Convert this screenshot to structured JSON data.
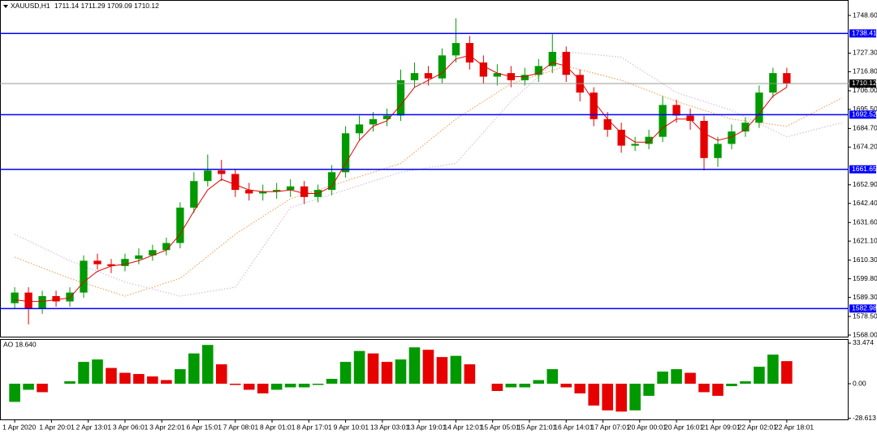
{
  "chart_data": [
    {
      "type": "candlestick",
      "title": "XAUUSD,H1",
      "header_values": [
        1711.14,
        1711.29,
        1709.09,
        1710.12
      ],
      "x": [
        0,
        6,
        12,
        18,
        24,
        30,
        36,
        42,
        48,
        54,
        60,
        66,
        72,
        78,
        84,
        90,
        96,
        102,
        108,
        114,
        120,
        126,
        132,
        138,
        144,
        150,
        156,
        162,
        168,
        174,
        180,
        186,
        192,
        198,
        204,
        210,
        216,
        222,
        228,
        234,
        240,
        246,
        252,
        258,
        264,
        270,
        276,
        282,
        288,
        294,
        300,
        306,
        312,
        318,
        324,
        330,
        336
      ],
      "open": [
        1586,
        1592,
        1583,
        1590,
        1587,
        1592,
        1610,
        1608,
        1607,
        1611,
        1613,
        1616,
        1620,
        1640,
        1655,
        1661,
        1659,
        1650,
        1648,
        1649,
        1650,
        1652,
        1646,
        1650,
        1660,
        1682,
        1687,
        1690,
        1692,
        1712,
        1716,
        1713,
        1726,
        1733,
        1722,
        1714,
        1716,
        1712,
        1715,
        1720,
        1728,
        1715,
        1705,
        1690,
        1684,
        1675,
        1676,
        1680,
        1698,
        1692,
        1689,
        1668,
        1676,
        1683,
        1688,
        1705,
        1716
      ],
      "high": [
        1595,
        1595,
        1593,
        1593,
        1595,
        1613,
        1614,
        1611,
        1614,
        1617,
        1619,
        1623,
        1643,
        1660,
        1670,
        1667,
        1662,
        1654,
        1653,
        1654,
        1656,
        1655,
        1653,
        1664,
        1686,
        1692,
        1694,
        1696,
        1718,
        1722,
        1720,
        1730,
        1747,
        1737,
        1726,
        1721,
        1720,
        1719,
        1724,
        1738,
        1731,
        1718,
        1708,
        1694,
        1688,
        1680,
        1684,
        1703,
        1701,
        1696,
        1692,
        1680,
        1687,
        1691,
        1709,
        1719,
        1719
      ],
      "low": [
        1583,
        1574,
        1580,
        1584,
        1584,
        1589,
        1605,
        1603,
        1604,
        1608,
        1610,
        1613,
        1617,
        1637,
        1652,
        1655,
        1646,
        1644,
        1644,
        1645,
        1646,
        1642,
        1643,
        1647,
        1657,
        1678,
        1683,
        1686,
        1689,
        1708,
        1709,
        1710,
        1722,
        1718,
        1710,
        1709,
        1708,
        1709,
        1711,
        1716,
        1711,
        1700,
        1686,
        1680,
        1671,
        1672,
        1673,
        1677,
        1688,
        1684,
        1661,
        1663,
        1673,
        1680,
        1685,
        1702,
        1708
      ],
      "close": [
        1592,
        1583,
        1590,
        1587,
        1592,
        1610,
        1608,
        1607,
        1611,
        1613,
        1616,
        1620,
        1640,
        1655,
        1661,
        1659,
        1650,
        1648,
        1649,
        1650,
        1652,
        1646,
        1650,
        1660,
        1682,
        1687,
        1690,
        1692,
        1712,
        1716,
        1713,
        1726,
        1733,
        1722,
        1714,
        1716,
        1712,
        1715,
        1720,
        1728,
        1715,
        1705,
        1690,
        1684,
        1675,
        1676,
        1680,
        1698,
        1692,
        1689,
        1668,
        1676,
        1683,
        1688,
        1705,
        1716,
        1710.12
      ],
      "up_color": "#009900",
      "down_color": "#e60000",
      "ma": {
        "color": "#e60000",
        "values": [
          1588,
          1587,
          1587,
          1588,
          1589,
          1598,
          1604,
          1607,
          1608,
          1610,
          1613,
          1616,
          1625,
          1638,
          1650,
          1656,
          1653,
          1650,
          1649,
          1649,
          1650,
          1648,
          1648,
          1652,
          1665,
          1678,
          1686,
          1689,
          1698,
          1708,
          1712,
          1716,
          1724,
          1726,
          1720,
          1716,
          1714,
          1714,
          1716,
          1722,
          1720,
          1712,
          1700,
          1690,
          1682,
          1677,
          1677,
          1685,
          1690,
          1690,
          1682,
          1678,
          1680,
          1684,
          1693,
          1703,
          1708
        ]
      },
      "cloud": {
        "x": [
          0,
          24,
          48,
          72,
          96,
          120,
          144,
          168,
          192,
          216,
          240,
          264,
          288,
          312,
          336,
          360
        ],
        "span_a": [
          1612,
          1600,
          1590,
          1600,
          1625,
          1645,
          1655,
          1665,
          1690,
          1710,
          1720,
          1712,
          1700,
          1690,
          1686,
          1702
        ],
        "span_b": [
          1625,
          1610,
          1598,
          1590,
          1595,
          1640,
          1650,
          1660,
          1665,
          1700,
          1728,
          1725,
          1705,
          1695,
          1680,
          1688
        ],
        "color_a": "#f4a460",
        "color_b": "#d8bfd8"
      },
      "levels": {
        "values": [
          1738.41,
          1692.52,
          1661.65,
          1582.98
        ],
        "color": "#0000ff"
      },
      "current_price": 1710.12,
      "xlim": [
        -6.4,
        362.9
      ],
      "ylim": [
        1566.63,
        1757.31
      ],
      "yticks": [
        {
          "value": 1748.6,
          "label": "1748.60"
        },
        {
          "value": 1727.3,
          "label": "1727.30"
        },
        {
          "value": 1716.8,
          "label": "1716.80"
        },
        {
          "value": 1706.0,
          "label": "1706.00"
        },
        {
          "value": 1695.5,
          "label": "1695.50"
        },
        {
          "value": 1684.7,
          "label": "1684.70"
        },
        {
          "value": 1674.2,
          "label": "1674.20"
        },
        {
          "value": 1652.9,
          "label": "1652.90"
        },
        {
          "value": 1642.4,
          "label": "1642.40"
        },
        {
          "value": 1631.6,
          "label": "1631.60"
        },
        {
          "value": 1621.1,
          "label": "1621.10"
        },
        {
          "value": 1610.3,
          "label": "1610.30"
        },
        {
          "value": 1599.8,
          "label": "1599.80"
        },
        {
          "value": 1589.3,
          "label": "1589.30"
        },
        {
          "value": 1578.5,
          "label": "1578.50"
        },
        {
          "value": 1568.0,
          "label": "1568.00"
        }
      ]
    },
    {
      "type": "bar",
      "title": "AO 18.640",
      "x": [
        0,
        6,
        12,
        18,
        24,
        30,
        36,
        42,
        48,
        54,
        60,
        66,
        72,
        78,
        84,
        90,
        96,
        102,
        108,
        114,
        120,
        126,
        132,
        138,
        144,
        150,
        156,
        162,
        168,
        174,
        180,
        186,
        192,
        198,
        204,
        210,
        216,
        222,
        228,
        234,
        240,
        246,
        252,
        258,
        264,
        270,
        276,
        282,
        288,
        294,
        300,
        306,
        312,
        318,
        324,
        330,
        336
      ],
      "values": [
        -15,
        -5,
        -7,
        0,
        2,
        18,
        20,
        13,
        9,
        8,
        6,
        3,
        12,
        25,
        32,
        16,
        -1,
        -5,
        -8,
        -5,
        -3,
        -3,
        -1,
        4,
        18,
        27,
        25,
        18,
        20,
        30,
        28,
        22,
        23,
        16,
        0,
        -6,
        -3,
        -3,
        3,
        12,
        -3,
        -8,
        -18,
        -22,
        -23,
        -22,
        -10,
        10,
        12,
        9,
        -7,
        -10,
        -2,
        2,
        14,
        24,
        18.64
      ],
      "up_color": "#009900",
      "down_color": "#e60000",
      "xlim": [
        -6.4,
        362.9
      ],
      "ylim": [
        -30.12,
        36.82
      ],
      "yticks": [
        33.474,
        {
          "value": 0,
          "label": "0.00"
        },
        -28.613
      ],
      "xticks": [
        {
          "value": 0,
          "label": "1 Apr 2020"
        },
        {
          "value": 16,
          "label": "1 Apr 20:01"
        },
        {
          "value": 32,
          "label": "2 Apr 13:01"
        },
        {
          "value": 48,
          "label": "3 Apr 06:01"
        },
        {
          "value": 64,
          "label": "3 Apr 22:01"
        },
        {
          "value": 80,
          "label": "6 Apr 15:01"
        },
        {
          "value": 96,
          "label": "7 Apr 08:01"
        },
        {
          "value": 112,
          "label": "8 Apr 01:01"
        },
        {
          "value": 128,
          "label": "8 Apr 17:01"
        },
        {
          "value": 144,
          "label": "9 Apr 10:01"
        },
        {
          "value": 160,
          "label": "13 Apr 03:01"
        },
        {
          "value": 176,
          "label": "13 Apr 19:01"
        },
        {
          "value": 192,
          "label": "14 Apr 12:01"
        },
        {
          "value": 208,
          "label": "15 Apr 05:01"
        },
        {
          "value": 224,
          "label": "15 Apr 21:01"
        },
        {
          "value": 240,
          "label": "16 Apr 14:01"
        },
        {
          "value": 256,
          "label": "17 Apr 07:01"
        },
        {
          "value": 272,
          "label": "20 Apr 00:01"
        },
        {
          "value": 288,
          "label": "20 Apr 16:01"
        },
        {
          "value": 304,
          "label": "21 Apr 09:01"
        },
        {
          "value": 320,
          "label": "22 Apr 02:01"
        },
        {
          "value": 336,
          "label": "22 Apr 18:01"
        }
      ]
    }
  ]
}
